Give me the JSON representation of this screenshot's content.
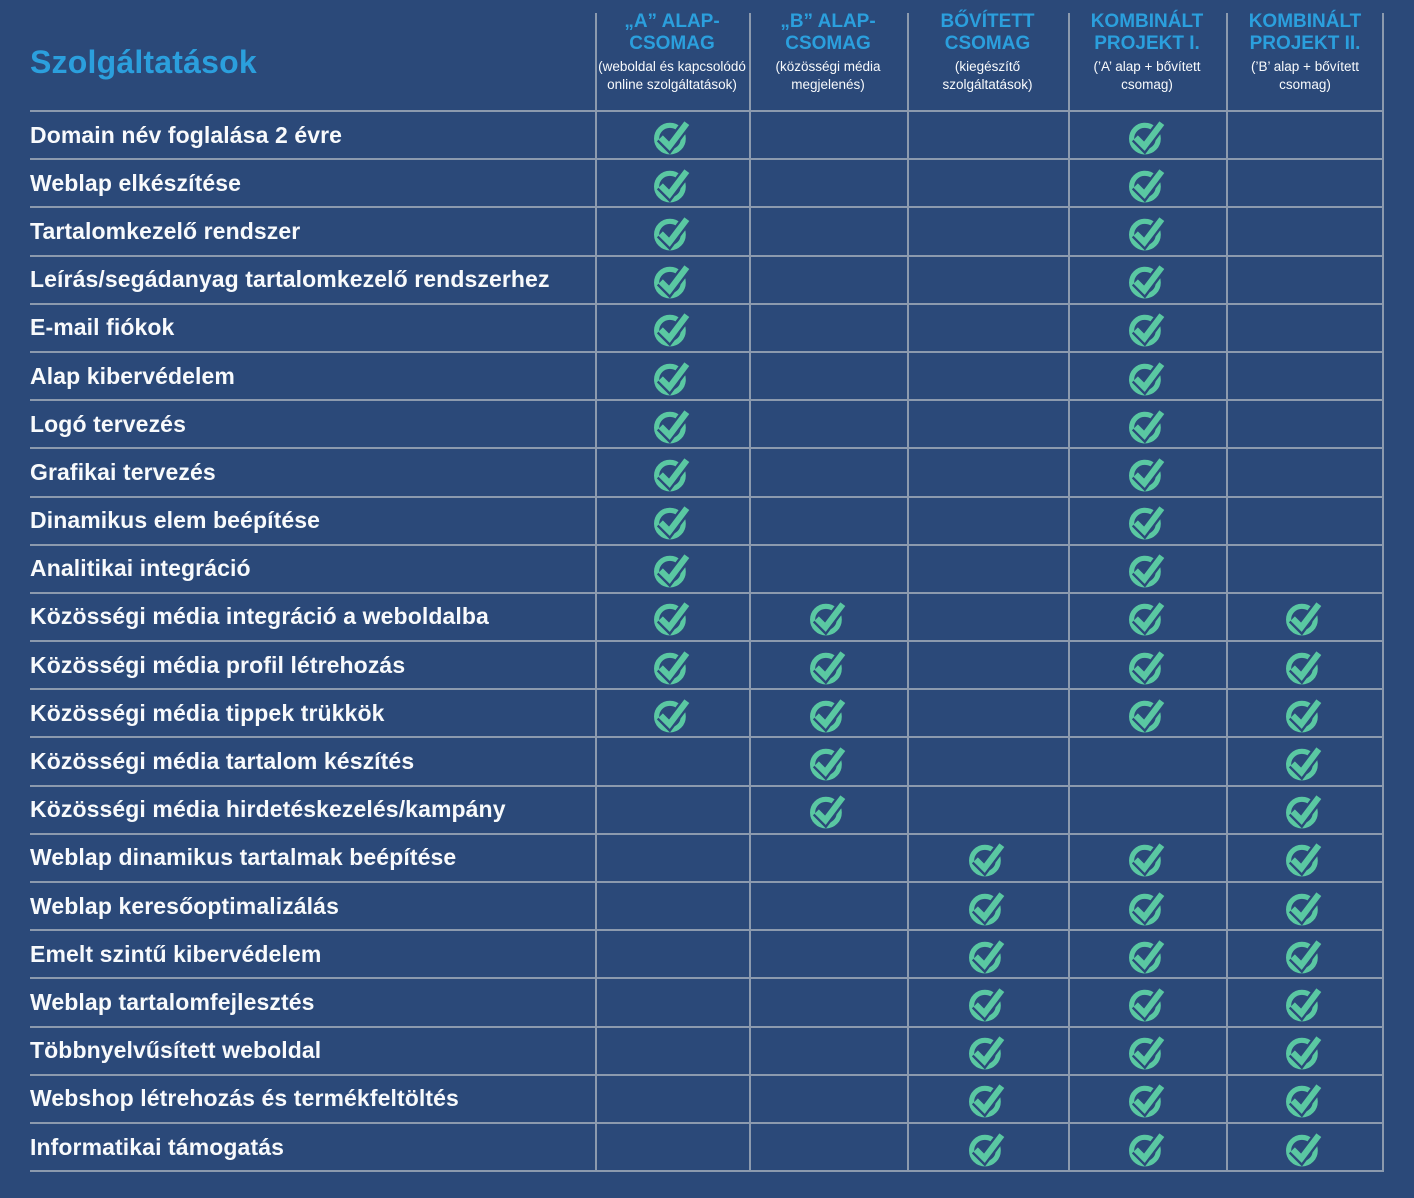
{
  "colors": {
    "background": "#2B4979",
    "grid_line": "#8C9AAE",
    "accent_blue": "#2B9FDD",
    "check_teal": "#5AC8A2",
    "row_text": "#F8FAFC"
  },
  "table": {
    "title": "Szolgáltatások",
    "check_icon": "check-circle-icon",
    "columns": [
      {
        "id": "a-alap-csomag",
        "title": "„A” ALAP-\nCSOMAG",
        "subtitle": "(weboldal és kapcsolódó online szolgáltatások)"
      },
      {
        "id": "b-alap-csomag",
        "title": "„B” ALAP-\nCSOMAG",
        "subtitle": "(közösségi média megjelenés)"
      },
      {
        "id": "bovitett-csomag",
        "title": "BŐVÍTETT\nCSOMAG",
        "subtitle": "(kiegészítő szolgáltatások)"
      },
      {
        "id": "kombinalt-projekt-1",
        "title": "KOMBINÁLT\nPROJEKT I.",
        "subtitle": "(’A’ alap + bővített csomag)"
      },
      {
        "id": "kombinalt-projekt-2",
        "title": "KOMBINÁLT\nPROJEKT II.",
        "subtitle": "(’B’ alap + bővített csomag)"
      }
    ]
  },
  "chart_data": {
    "type": "table",
    "title": "Szolgáltatások",
    "columns": [
      "„A” ALAP-CSOMAG",
      "„B” ALAP-CSOMAG",
      "BŐVÍTETT CSOMAG",
      "KOMBINÁLT PROJEKT I.",
      "KOMBINÁLT PROJEKT II."
    ],
    "value_legend": "1 = szolgáltatás benne van a csomagban (pipa), 0 = nincs benne",
    "rows": [
      {
        "label": "Domain név foglalása 2 évre",
        "values": [
          1,
          0,
          0,
          1,
          0
        ]
      },
      {
        "label": "Weblap elkészítése",
        "values": [
          1,
          0,
          0,
          1,
          0
        ]
      },
      {
        "label": "Tartalomkezelő rendszer",
        "values": [
          1,
          0,
          0,
          1,
          0
        ]
      },
      {
        "label": "Leírás/segádanyag tartalomkezelő rendszerhez",
        "values": [
          1,
          0,
          0,
          1,
          0
        ]
      },
      {
        "label": "E-mail fiókok",
        "values": [
          1,
          0,
          0,
          1,
          0
        ]
      },
      {
        "label": "Alap kibervédelem",
        "values": [
          1,
          0,
          0,
          1,
          0
        ]
      },
      {
        "label": "Logó tervezés",
        "values": [
          1,
          0,
          0,
          1,
          0
        ]
      },
      {
        "label": "Grafikai tervezés",
        "values": [
          1,
          0,
          0,
          1,
          0
        ]
      },
      {
        "label": "Dinamikus elem beépítése",
        "values": [
          1,
          0,
          0,
          1,
          0
        ]
      },
      {
        "label": "Analitikai integráció",
        "values": [
          1,
          0,
          0,
          1,
          0
        ]
      },
      {
        "label": "Közösségi média integráció a weboldalba",
        "values": [
          1,
          1,
          0,
          1,
          1
        ]
      },
      {
        "label": "Közösségi média profil létrehozás",
        "values": [
          1,
          1,
          0,
          1,
          1
        ]
      },
      {
        "label": "Közösségi média tippek trükkök",
        "values": [
          1,
          1,
          0,
          1,
          1
        ]
      },
      {
        "label": "Közösségi média tartalom készítés",
        "values": [
          0,
          1,
          0,
          0,
          1
        ]
      },
      {
        "label": "Közösségi média hirdetéskezelés/kampány",
        "values": [
          0,
          1,
          0,
          0,
          1
        ]
      },
      {
        "label": "Weblap dinamikus tartalmak beépítése",
        "values": [
          0,
          0,
          1,
          1,
          1
        ]
      },
      {
        "label": "Weblap keresőoptimalizálás",
        "values": [
          0,
          0,
          1,
          1,
          1
        ]
      },
      {
        "label": "Emelt szintű kibervédelem",
        "values": [
          0,
          0,
          1,
          1,
          1
        ]
      },
      {
        "label": "Weblap tartalomfejlesztés",
        "values": [
          0,
          0,
          1,
          1,
          1
        ]
      },
      {
        "label": "Többnyelvűsített weboldal",
        "values": [
          0,
          0,
          1,
          1,
          1
        ]
      },
      {
        "label": "Webshop létrehozás és termékfeltöltés",
        "values": [
          0,
          0,
          1,
          1,
          1
        ]
      },
      {
        "label": "Informatikai támogatás",
        "values": [
          0,
          0,
          1,
          1,
          1
        ]
      }
    ]
  }
}
